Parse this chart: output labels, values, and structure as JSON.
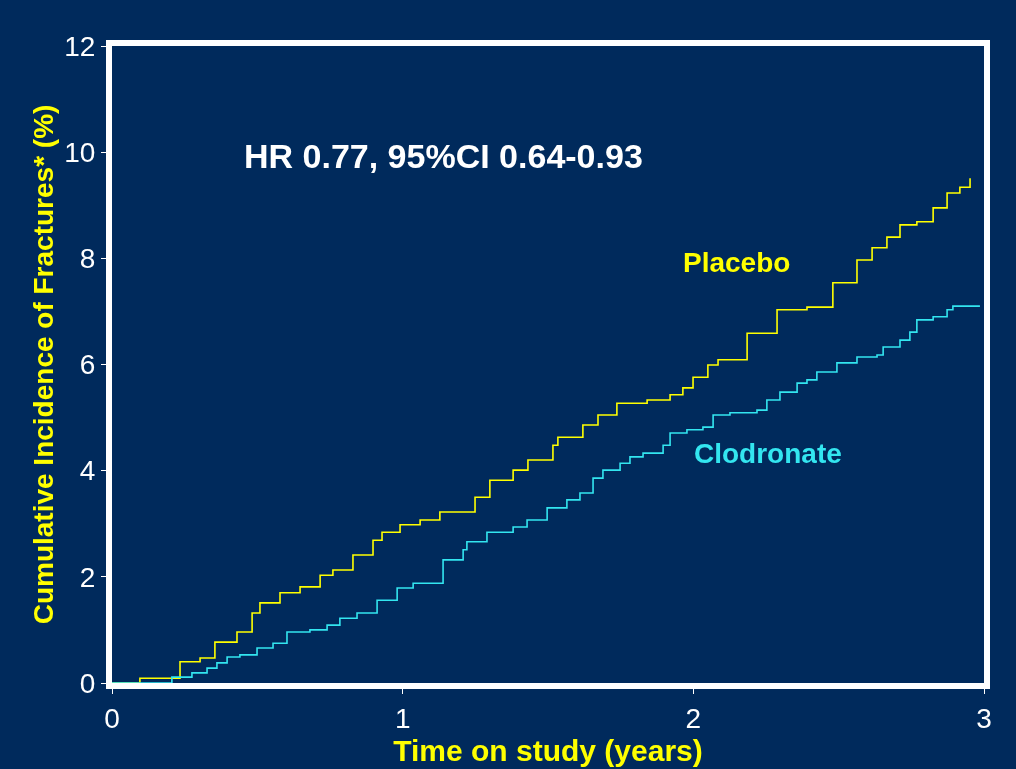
{
  "chart_data": {
    "type": "step",
    "xlabel": "Time on study (years)",
    "ylabel": "Cumulative Incidence of Fractures* (%)",
    "annotations": [
      "HR 0.77, 95%CI 0.64-0.93"
    ],
    "xlim": [
      0,
      3
    ],
    "xticks": [
      0,
      1,
      2,
      3
    ],
    "ylim": [
      0,
      12
    ],
    "yticks": [
      0,
      2,
      4,
      6,
      8,
      10,
      12
    ],
    "legend": false,
    "series": [
      {
        "name": "Placebo",
        "color": "#ffff00",
        "x": [
          0,
          0.096,
          0.234,
          0.303,
          0.354,
          0.43,
          0.482,
          0.509,
          0.578,
          0.647,
          0.716,
          0.76,
          0.829,
          0.898,
          0.929,
          0.991,
          1.06,
          1.128,
          1.249,
          1.3,
          1.38,
          1.431,
          1.517,
          1.534,
          1.62,
          1.672,
          1.737,
          1.841,
          1.92,
          1.964,
          1.999,
          2.05,
          2.085,
          2.185,
          2.288,
          2.391,
          2.48,
          2.563,
          2.615,
          2.666,
          2.711,
          2.769,
          2.825,
          2.873,
          2.917,
          2.952
        ],
        "values": [
          0,
          0.09,
          0.4,
          0.47,
          0.77,
          0.96,
          1.32,
          1.51,
          1.7,
          1.81,
          2.03,
          2.13,
          2.41,
          2.69,
          2.84,
          2.98,
          3.07,
          3.22,
          3.5,
          3.82,
          4.01,
          4.2,
          4.48,
          4.63,
          4.86,
          5.05,
          5.27,
          5.33,
          5.43,
          5.56,
          5.76,
          5.99,
          6.09,
          6.59,
          7.03,
          7.08,
          7.54,
          7.97,
          8.2,
          8.4,
          8.63,
          8.69,
          8.95,
          9.23,
          9.34,
          9.51
        ]
      },
      {
        "name": "Clodronate",
        "color": "#33e6f0",
        "x": [
          0,
          0.206,
          0.275,
          0.327,
          0.361,
          0.396,
          0.44,
          0.499,
          0.554,
          0.602,
          0.681,
          0.74,
          0.784,
          0.843,
          0.912,
          0.981,
          1.036,
          1.139,
          1.208,
          1.221,
          1.29,
          1.38,
          1.428,
          1.497,
          1.565,
          1.61,
          1.655,
          1.689,
          1.748,
          1.782,
          1.827,
          1.896,
          1.92,
          1.978,
          2.033,
          2.068,
          2.126,
          2.219,
          2.253,
          2.298,
          2.357,
          2.391,
          2.425,
          2.494,
          2.563,
          2.632,
          2.653,
          2.711,
          2.745,
          2.769,
          2.825,
          2.873,
          2.893,
          2.986
        ],
        "values": [
          0,
          0.11,
          0.19,
          0.28,
          0.38,
          0.49,
          0.53,
          0.66,
          0.75,
          0.96,
          1.0,
          1.09,
          1.22,
          1.32,
          1.56,
          1.79,
          1.88,
          2.32,
          2.51,
          2.66,
          2.84,
          2.94,
          3.07,
          3.3,
          3.45,
          3.58,
          3.86,
          4.01,
          4.14,
          4.26,
          4.33,
          4.48,
          4.71,
          4.77,
          4.82,
          5.05,
          5.09,
          5.14,
          5.33,
          5.48,
          5.65,
          5.71,
          5.86,
          6.03,
          6.14,
          6.18,
          6.33,
          6.46,
          6.61,
          6.84,
          6.9,
          7.03,
          7.1,
          7.1
        ]
      }
    ]
  }
}
